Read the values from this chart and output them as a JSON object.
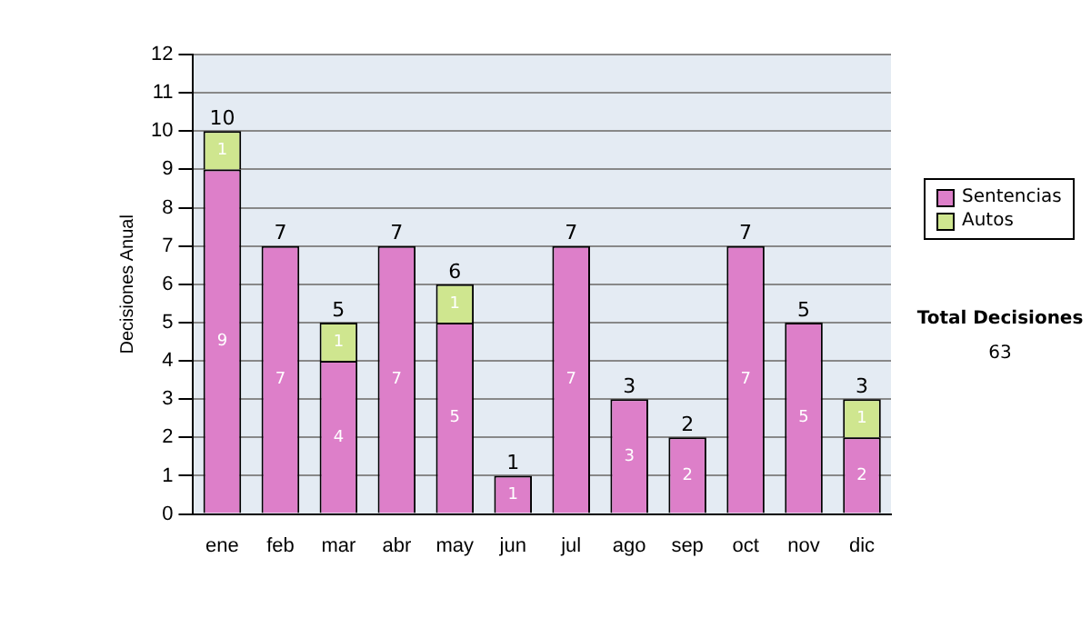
{
  "chart_data": {
    "type": "bar",
    "stacked": true,
    "ylabel": "Decisiones Anual",
    "categories": [
      "ene",
      "feb",
      "mar",
      "abr",
      "may",
      "jun",
      "jul",
      "ago",
      "sep",
      "oct",
      "nov",
      "dic"
    ],
    "series": [
      {
        "name": "Sentencias",
        "color": "#dd7fc9",
        "values": [
          9,
          7,
          4,
          7,
          5,
          1,
          7,
          3,
          2,
          7,
          5,
          2
        ],
        "value_labels": [
          "9",
          "7",
          "4",
          "7",
          "5",
          "1",
          "7",
          "3",
          "2",
          "7",
          "5",
          "2"
        ]
      },
      {
        "name": "Autos",
        "color": "#cfe68f",
        "values": [
          1,
          0,
          1,
          0,
          1,
          0,
          0,
          0,
          0,
          0,
          0,
          1
        ],
        "value_labels": [
          "1",
          null,
          "1",
          null,
          "1",
          null,
          null,
          null,
          null,
          null,
          null,
          "1"
        ]
      }
    ],
    "totals": [
      "10",
      "7",
      "5",
      "7",
      "6",
      "1",
      "7",
      "3",
      "2",
      "7",
      "5",
      "3"
    ],
    "ylim": [
      0,
      12
    ],
    "yticks": [
      0,
      1,
      2,
      3,
      4,
      5,
      6,
      7,
      8,
      9,
      10,
      11,
      12
    ],
    "grid": "y",
    "legend": "right",
    "annotations": [
      "Total Decisiones",
      "63"
    ]
  }
}
